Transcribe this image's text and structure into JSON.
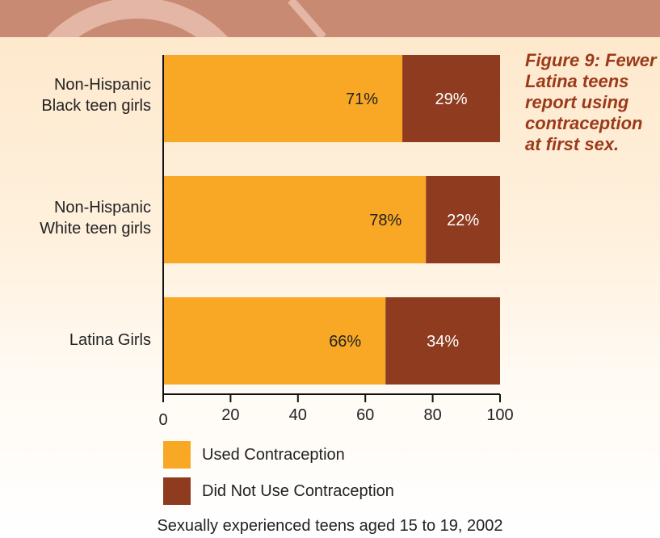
{
  "chart_data": {
    "type": "bar",
    "orientation": "horizontal",
    "stacked": true,
    "categories": [
      "Non-Hispanic\nBlack teen girls",
      "Non-Hispanic\nWhite teen girls",
      "Latina Girls"
    ],
    "series": [
      {
        "name": "Used Contraception",
        "values": [
          71,
          78,
          66
        ],
        "labels": [
          "71%",
          "78%",
          "66%"
        ],
        "color": "#f9a825"
      },
      {
        "name": "Did Not Use Contraception",
        "values": [
          29,
          22,
          34
        ],
        "labels": [
          "29%",
          "22%",
          "34%"
        ],
        "color": "#8e3b20"
      }
    ],
    "xlim": [
      0,
      100
    ],
    "xticks": [
      0,
      20,
      40,
      60,
      80,
      100
    ],
    "grid": false,
    "legend_position": "bottom"
  },
  "caption": "Figure 9: Fewer Latina teens report using contraception at first sex.",
  "footnote": "Sexually experienced teens aged 15 to 19, 2002",
  "colors": {
    "used": "#f9a825",
    "not_used": "#8e3b20",
    "header_band": "#c98a73",
    "caption_text": "#9b3a1a"
  }
}
